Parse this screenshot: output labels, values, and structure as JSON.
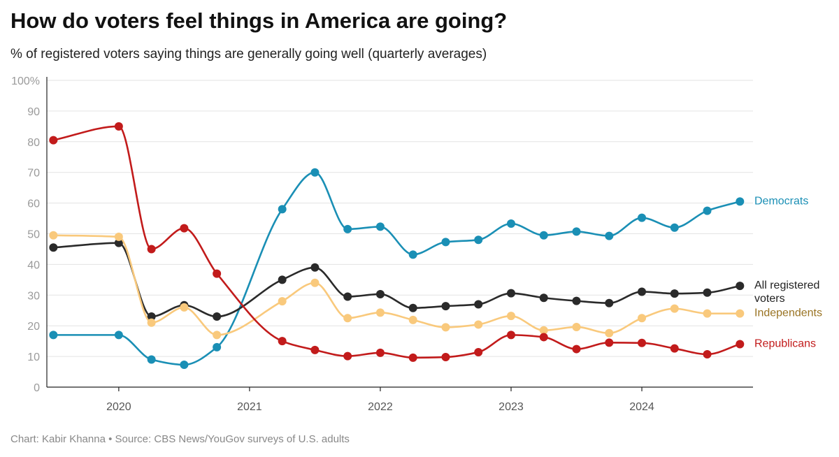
{
  "title": "How do voters feel things in America are going?",
  "subtitle": "% of registered voters saying things are generally going well (quarterly averages)",
  "footer": "Chart: Kabir Khanna • Source: CBS News/YouGov surveys of U.S. adults",
  "chart_data": {
    "type": "line",
    "title": "How do voters feel things in America are going?",
    "subtitle": "% of registered voters saying things are generally going well (quarterly averages)",
    "xlabel": "",
    "ylabel": "",
    "ylim": [
      0,
      100
    ],
    "xlim": [
      2019.45,
      2024.85
    ],
    "yticks": [
      0,
      10,
      20,
      30,
      40,
      50,
      60,
      70,
      80,
      90,
      100
    ],
    "ytick_labels": [
      "0",
      "10",
      "20",
      "30",
      "40",
      "50",
      "60",
      "70",
      "80",
      "90",
      "100%"
    ],
    "xticks": [
      2020,
      2021,
      2022,
      2023,
      2024
    ],
    "xtick_labels": [
      "2020",
      "2021",
      "2022",
      "2023",
      "2024"
    ],
    "x": [
      2019.5,
      2020.0,
      2020.25,
      2020.5,
      2020.75,
      2021.25,
      2021.5,
      2021.75,
      2022.0,
      2022.25,
      2022.5,
      2022.75,
      2023.0,
      2023.25,
      2023.5,
      2023.75,
      2024.0,
      2024.25,
      2024.5,
      2024.75
    ],
    "series": [
      {
        "name": "Democrats",
        "label_lines": [
          "Democrats"
        ],
        "color": "#1a8fb5",
        "label_color": "#1a8fb5",
        "values": [
          17,
          17,
          9,
          7.3,
          13,
          58,
          70,
          51.5,
          52.3,
          43.2,
          47.3,
          48,
          53.3,
          49.5,
          50.7,
          49.3,
          55.2,
          52,
          57.5,
          60.5
        ]
      },
      {
        "name": "All registered voters",
        "label_lines": [
          "All registered",
          "voters"
        ],
        "color": "#2a2a2a",
        "label_color": "#222222",
        "values": [
          45.5,
          47,
          23,
          26.7,
          23,
          35,
          39,
          29.5,
          30.3,
          25.8,
          26.4,
          27,
          30.6,
          29.1,
          28.1,
          27.4,
          31.1,
          30.5,
          30.8,
          33
        ]
      },
      {
        "name": "Independents",
        "label_lines": [
          "Independents"
        ],
        "color": "#f9c97c",
        "label_color": "#9a7424",
        "values": [
          49.5,
          49,
          21,
          26,
          17,
          28,
          34,
          22.5,
          24.3,
          21.9,
          19.5,
          20.4,
          23.2,
          18.5,
          19.6,
          17.6,
          22.5,
          25.6,
          24,
          24
        ]
      },
      {
        "name": "Republicans",
        "label_lines": [
          "Republicans"
        ],
        "color": "#c21b1b",
        "label_color": "#c21b1b",
        "values": [
          80.5,
          85,
          45,
          51.8,
          37,
          15,
          12.1,
          10.1,
          11.2,
          9.6,
          9.8,
          11.4,
          17,
          16.3,
          12.4,
          14.5,
          14.4,
          12.6,
          10.7,
          14
        ]
      }
    ]
  }
}
